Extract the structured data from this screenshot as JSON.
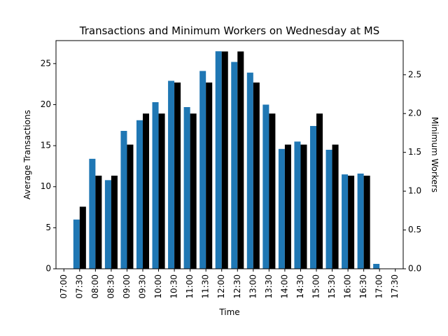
{
  "chart_data": {
    "type": "bar",
    "title": "Transactions and Minimum Workers on Wednesday at MS",
    "xlabel": "Time",
    "ylabel_left": "Average Transactions",
    "ylabel_right": "Minimum Workers",
    "categories": [
      "07:00",
      "07:30",
      "08:00",
      "08:30",
      "09:00",
      "09:30",
      "10:00",
      "10:30",
      "11:00",
      "11:30",
      "12:00",
      "12:30",
      "13:00",
      "13:30",
      "14:00",
      "14:30",
      "15:00",
      "15:30",
      "16:00",
      "16:30",
      "17:00",
      "17:30"
    ],
    "series": [
      {
        "axis": "left",
        "color": "#1f77b4",
        "values": [
          0,
          6.0,
          13.4,
          10.8,
          16.8,
          18.1,
          20.3,
          22.9,
          19.7,
          24.1,
          26.5,
          25.2,
          23.9,
          20.0,
          14.6,
          15.5,
          17.4,
          14.5,
          11.5,
          11.6,
          0.6,
          0
        ]
      },
      {
        "axis": "right",
        "color": "#000000",
        "values": [
          0,
          0.8,
          1.2,
          1.2,
          1.6,
          2.0,
          2.0,
          2.4,
          2.0,
          2.4,
          2.8,
          2.8,
          2.4,
          2.0,
          1.6,
          1.6,
          2.0,
          1.6,
          1.2,
          1.2,
          0,
          0
        ]
      }
    ],
    "ylim_left": [
      0,
      27.8
    ],
    "yticks_left": [
      0,
      5,
      10,
      15,
      20,
      25
    ],
    "ylim_right": [
      0,
      2.94
    ],
    "yticks_right": [
      "0.0",
      "0.5",
      "1.0",
      "1.5",
      "2.0",
      "2.5"
    ],
    "grid": false,
    "legend": "none"
  }
}
